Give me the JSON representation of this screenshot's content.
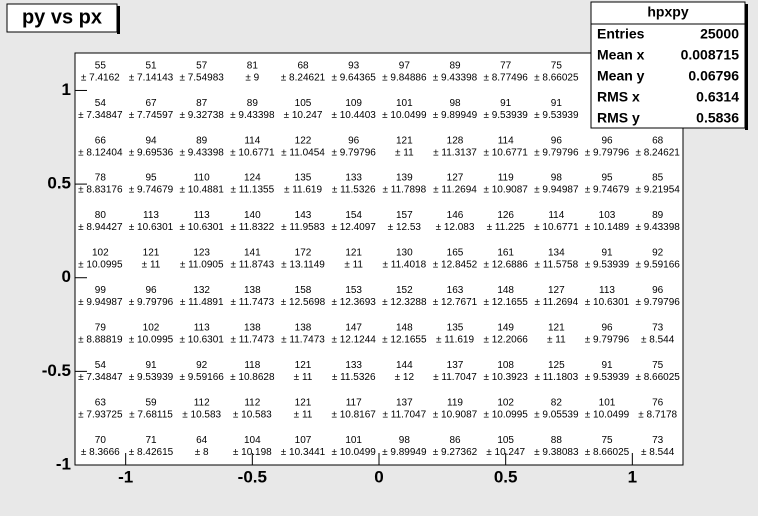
{
  "chart_data": {
    "type": "hist2d-text",
    "title": "py vs px",
    "xlim": [
      -1.2,
      1.2
    ],
    "ylim": [
      -1.0,
      1.2
    ],
    "xticks": [
      -1,
      -0.5,
      0,
      0.5,
      1
    ],
    "yticks": [
      -1,
      -0.5,
      0,
      0.5,
      1
    ],
    "xbin_count": 12,
    "ybin_count": 11,
    "counts": [
      [
        55,
        51,
        57,
        81,
        68,
        93,
        97,
        89,
        77,
        75,
        null,
        null
      ],
      [
        54,
        67,
        87,
        89,
        105,
        109,
        101,
        98,
        91,
        91,
        null,
        null
      ],
      [
        66,
        94,
        89,
        114,
        122,
        96,
        121,
        128,
        114,
        96,
        96,
        68
      ],
      [
        78,
        95,
        110,
        124,
        135,
        133,
        139,
        127,
        119,
        98,
        95,
        85
      ],
      [
        80,
        113,
        113,
        140,
        143,
        154,
        157,
        146,
        126,
        114,
        103,
        89
      ],
      [
        102,
        121,
        123,
        141,
        172,
        121,
        130,
        165,
        161,
        134,
        91,
        92
      ],
      [
        99,
        96,
        132,
        138,
        158,
        153,
        152,
        163,
        148,
        127,
        113,
        96
      ],
      [
        79,
        102,
        113,
        138,
        138,
        147,
        148,
        135,
        149,
        121,
        96,
        73
      ],
      [
        54,
        91,
        92,
        118,
        121,
        133,
        144,
        137,
        108,
        125,
        91,
        75
      ],
      [
        63,
        59,
        112,
        112,
        121,
        117,
        137,
        119,
        102,
        82,
        101,
        76
      ],
      [
        70,
        71,
        64,
        104,
        107,
        101,
        98,
        86,
        105,
        88,
        75,
        73
      ]
    ],
    "error_labels": [
      [
        "± 7.4162",
        "± 7.14143",
        "± 7.54983",
        "± 9",
        "± 8.24621",
        "± 9.64365",
        "± 9.84886",
        "± 9.43398",
        "± 8.77496",
        "± 8.66025",
        null,
        null
      ],
      [
        "± 7.34847",
        "± 7.74597",
        "± 9.32738",
        "± 9.43398",
        "± 10.247",
        "± 10.4403",
        "± 10.0499",
        "± 9.89949",
        "± 9.53939",
        "± 9.53939",
        null,
        null
      ],
      [
        "± 8.12404",
        "± 9.69536",
        "± 9.43398",
        "± 10.6771",
        "± 11.0454",
        "± 9.79796",
        "± 11",
        "± 11.3137",
        "± 10.6771",
        "± 9.79796",
        "± 9.79796",
        "± 8.24621"
      ],
      [
        "± 8.83176",
        "± 9.74679",
        "± 10.4881",
        "± 11.1355",
        "± 11.619",
        "± 11.5326",
        "± 11.7898",
        "± 11.2694",
        "± 10.9087",
        "± 9.94987",
        "± 9.74679",
        "± 9.21954"
      ],
      [
        "± 8.94427",
        "± 10.6301",
        "± 10.6301",
        "± 11.8322",
        "± 11.9583",
        "± 12.4097",
        "± 12.53",
        "± 12.083",
        "± 11.225",
        "± 10.6771",
        "± 10.1489",
        "± 9.43398"
      ],
      [
        "± 10.0995",
        "± 11",
        "± 11.0905",
        "± 11.8743",
        "± 13.1149",
        "± 11",
        "± 11.4018",
        "± 12.8452",
        "± 12.6886",
        "± 11.5758",
        "± 9.53939",
        "± 9.59166"
      ],
      [
        "± 9.94987",
        "± 9.79796",
        "± 11.4891",
        "± 11.7473",
        "± 12.5698",
        "± 12.3693",
        "± 12.3288",
        "± 12.7671",
        "± 12.1655",
        "± 11.2694",
        "± 10.6301",
        "± 9.79796"
      ],
      [
        "± 8.88819",
        "± 10.0995",
        "± 10.6301",
        "± 11.7473",
        "± 11.7473",
        "± 12.1244",
        "± 12.1655",
        "± 11.619",
        "± 12.2066",
        "± 11",
        "± 9.79796",
        "± 8.544"
      ],
      [
        "± 7.34847",
        "± 9.53939",
        "± 9.59166",
        "± 10.8628",
        "± 11",
        "± 11.5326",
        "± 12",
        "± 11.7047",
        "± 10.3923",
        "± 11.1803",
        "± 9.53939",
        "± 8.66025"
      ],
      [
        "± 7.93725",
        "± 7.68115",
        "± 10.583",
        "± 10.583",
        "± 11",
        "± 10.8167",
        "± 11.7047",
        "± 10.9087",
        "± 10.0995",
        "± 9.05539",
        "± 10.0499",
        "± 8.7178"
      ],
      [
        "± 8.3666",
        "± 8.42615",
        "± 8",
        "± 10.198",
        "± 10.3441",
        "± 10.0499",
        "± 9.89949",
        "± 9.27362",
        "± 10.247",
        "± 9.38083",
        "± 8.66025",
        "± 8.544"
      ]
    ],
    "stats": {
      "title": "hpxpy",
      "entries": [
        {
          "label": "Entries",
          "value": 25000
        },
        {
          "label": "Mean x",
          "value": 0.008715
        },
        {
          "label": "Mean y",
          "value": 0.06796
        },
        {
          "label": "RMS x",
          "value": 0.6314
        },
        {
          "label": "RMS y",
          "value": 0.5836
        }
      ]
    }
  }
}
